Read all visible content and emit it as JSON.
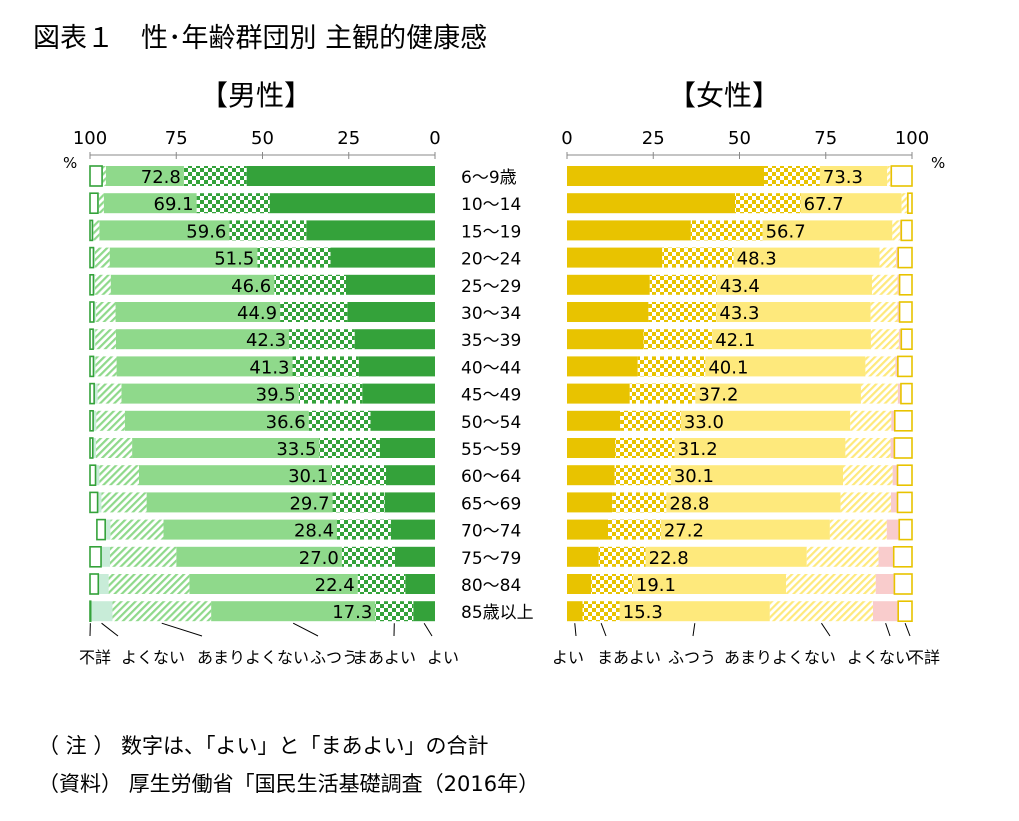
{
  "title": "図表１　性･年齢群団別 主観的健康感",
  "male_title": "【男性】",
  "female_title": "【女性】",
  "percent_label": "%",
  "note": "（ 注 ） 数字は、「よい」と「まあよい」の合計",
  "source": "（資料） 厚生労働省「国民生活基礎調査（2016年）",
  "colors": {
    "male_good": "#34a23a",
    "male_fair": "#8fd98b",
    "male_bad": "#c8ecd8",
    "female_good": "#e8c300",
    "female_fair": "#fee97c",
    "female_bad": "#f9cccc"
  },
  "chart_data": [
    {
      "panel": "男性",
      "type": "bar",
      "orientation": "horizontal",
      "stacked": true,
      "stack_direction": "right-to-left",
      "xlim": [
        100,
        0
      ],
      "xticks": [
        "100",
        "75",
        "50",
        "25",
        "0"
      ],
      "categories": [
        "6～9歳",
        "10～14",
        "15～19",
        "20～24",
        "25～29",
        "30～34",
        "35～39",
        "40～44",
        "45～49",
        "50～54",
        "55～59",
        "60～64",
        "65～69",
        "70～74",
        "75～79",
        "80～84",
        "85歳以上"
      ],
      "series": [
        {
          "name": "よい",
          "values": [
            54.6,
            47.9,
            37.3,
            30.3,
            25.8,
            25.4,
            23.3,
            22.1,
            21.1,
            18.7,
            16.0,
            14.2,
            14.6,
            12.8,
            11.6,
            8.6,
            6.3
          ]
        },
        {
          "name": "まあよい",
          "values": [
            18.2,
            21.2,
            22.3,
            21.2,
            20.8,
            19.5,
            19.0,
            19.2,
            18.4,
            17.9,
            17.5,
            15.9,
            15.1,
            15.6,
            15.4,
            13.8,
            11.0
          ]
        },
        {
          "name": "ふつう",
          "values": [
            22.6,
            26.9,
            37.7,
            42.8,
            47.4,
            47.7,
            50.2,
            51.0,
            51.4,
            53.3,
            54.3,
            55.7,
            53.9,
            50.3,
            48.0,
            48.8,
            47.6
          ]
        },
        {
          "name": "あまりよくない",
          "values": [
            0.9,
            1.4,
            1.7,
            4.3,
            4.6,
            5.7,
            6.0,
            6.1,
            6.9,
            8.3,
            10.5,
            11.5,
            13.1,
            15.4,
            19.2,
            23.4,
            28.6
          ]
        },
        {
          "name": "よくない",
          "values": [
            0.2,
            0.3,
            0.3,
            0.4,
            0.4,
            0.6,
            0.6,
            0.6,
            1.0,
            0.9,
            0.9,
            1.1,
            1.1,
            1.5,
            2.6,
            3.0,
            6.3
          ]
        },
        {
          "name": "不詳",
          "values": [
            3.5,
            2.3,
            0.7,
            1.0,
            1.0,
            1.1,
            0.9,
            1.0,
            1.2,
            0.9,
            0.8,
            1.6,
            2.2,
            2.4,
            3.2,
            2.4,
            0.2
          ]
        }
      ],
      "data_labels": [
        "72.8",
        "69.1",
        "59.6",
        "51.5",
        "46.6",
        "44.9",
        "42.3",
        "41.3",
        "39.5",
        "36.6",
        "33.5",
        "30.1",
        "29.7",
        "28.4",
        "27.0",
        "22.4",
        "17.3"
      ]
    },
    {
      "panel": "女性",
      "type": "bar",
      "orientation": "horizontal",
      "stacked": true,
      "stack_direction": "left-to-right",
      "xlim": [
        0,
        100
      ],
      "xticks": [
        "0",
        "25",
        "50",
        "75",
        "100"
      ],
      "categories": [
        "6～9歳",
        "10～14",
        "15～19",
        "20～24",
        "25～29",
        "30～34",
        "35～39",
        "40～44",
        "45～49",
        "50～54",
        "55～59",
        "60～64",
        "65～69",
        "70～74",
        "75～79",
        "80～84",
        "85歳以上"
      ],
      "series": [
        {
          "name": "よい",
          "values": [
            57.1,
            48.7,
            35.9,
            27.6,
            24.0,
            23.6,
            22.2,
            20.5,
            18.2,
            15.4,
            14.0,
            13.8,
            13.1,
            11.9,
            9.2,
            7.0,
            4.5
          ]
        },
        {
          "name": "まあよい",
          "values": [
            16.2,
            19.0,
            20.8,
            20.7,
            19.4,
            19.7,
            19.9,
            19.6,
            19.0,
            17.6,
            17.2,
            16.3,
            15.7,
            15.3,
            13.6,
            12.1,
            10.8
          ]
        },
        {
          "name": "ふつう",
          "values": [
            19.5,
            29.3,
            37.6,
            42.3,
            45.0,
            44.7,
            46.0,
            46.4,
            48.0,
            49.1,
            49.5,
            49.9,
            50.5,
            49.0,
            46.7,
            44.4,
            43.5
          ]
        },
        {
          "name": "あまりよくない",
          "values": [
            0.9,
            1.5,
            2.2,
            4.8,
            7.4,
            7.8,
            8.1,
            8.7,
            10.7,
            11.9,
            13.1,
            14.4,
            14.6,
            16.5,
            20.8,
            26.0,
            29.9
          ]
        },
        {
          "name": "よくない",
          "values": [
            0.3,
            0.3,
            0.4,
            0.6,
            0.6,
            0.6,
            0.7,
            0.7,
            0.9,
            1.0,
            1.1,
            1.4,
            1.9,
            3.6,
            4.4,
            5.4,
            7.3
          ]
        },
        {
          "name": "不詳",
          "values": [
            6.0,
            1.2,
            3.1,
            4.0,
            3.6,
            3.6,
            3.1,
            4.1,
            3.2,
            5.0,
            5.1,
            4.2,
            4.2,
            3.7,
            5.3,
            5.1,
            4.0
          ]
        }
      ],
      "data_labels": [
        "73.3",
        "67.7",
        "56.7",
        "48.3",
        "43.4",
        "43.3",
        "42.1",
        "40.1",
        "37.2",
        "33.0",
        "31.2",
        "30.1",
        "28.8",
        "27.2",
        "22.8",
        "19.1",
        "15.3"
      ]
    }
  ]
}
